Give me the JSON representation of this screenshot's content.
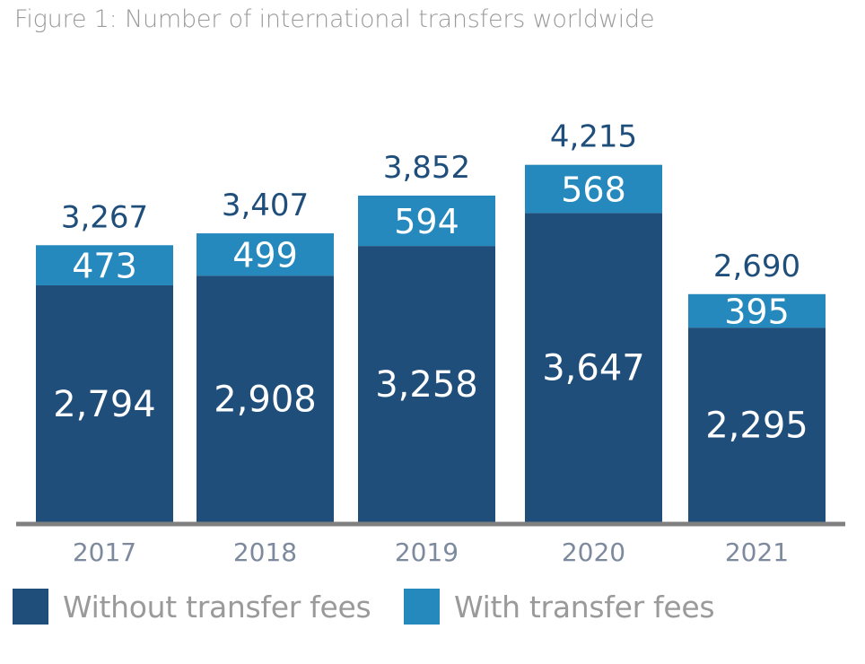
{
  "title": "Figure 1: Number of international transfers worldwide",
  "colors": {
    "without_fees": "#1f4e7b",
    "with_fees": "#2589bd",
    "axis": "#808080",
    "label_dark": "#1f4e7b",
    "label_light": "#ffffff",
    "tick_label": "#7d8a9e",
    "legend_text": "#9a9a9a"
  },
  "chart_data": {
    "type": "bar",
    "stacked": true,
    "title": "Figure 1: Number of international transfers worldwide",
    "categories": [
      "2017",
      "2018",
      "2019",
      "2020",
      "2021"
    ],
    "series": [
      {
        "name": "Without transfer fees",
        "values": [
          2794,
          2908,
          3258,
          3647,
          2295
        ],
        "labels": [
          "2,794",
          "2,908",
          "3,258",
          "3,647",
          "2,295"
        ]
      },
      {
        "name": "With transfer fees",
        "values": [
          473,
          499,
          594,
          568,
          395
        ],
        "labels": [
          "473",
          "499",
          "594",
          "568",
          "395"
        ]
      }
    ],
    "totals": [
      3267,
      3407,
      3852,
      4215,
      2690
    ],
    "total_labels": [
      "3,267",
      "3,407",
      "3,852",
      "4,215",
      "2,690"
    ],
    "ylim": [
      0,
      4400
    ],
    "grid": false,
    "legend": "bottom-left"
  }
}
